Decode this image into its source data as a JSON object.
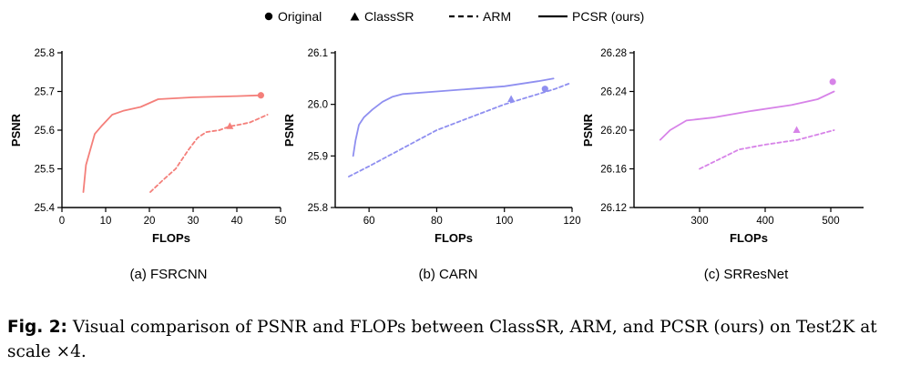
{
  "legend": {
    "original": "Original",
    "classsr": "ClassSR",
    "arm": "ARM",
    "pcsr": "PCSR (ours)"
  },
  "colors": {
    "a": "#f47f7a",
    "b": "#8f8ff0",
    "c": "#d783e8"
  },
  "caption": {
    "label": "Fig. 2:",
    "text": " Visual comparison of PSNR and FLOPs between ClassSR, ARM, and PCSR (ours) on Test2K at scale ×4."
  },
  "chart_data": [
    {
      "type": "line",
      "subtitle": "(a) FSRCNN",
      "xlabel": "FLOPs",
      "ylabel": "PSNR",
      "xlim": [
        0,
        50
      ],
      "ylim": [
        25.4,
        25.8
      ],
      "xticks": [
        0,
        10,
        20,
        30,
        40,
        50
      ],
      "yticks": [
        25.4,
        25.5,
        25.6,
        25.7,
        25.8
      ],
      "ytick_labels": [
        "25.4",
        "25.5",
        "25.6",
        "25.7",
        "25.8"
      ],
      "color": "#f47f7a",
      "series": [
        {
          "name": "PCSR (ours)",
          "style": "solid",
          "x": [
            4.9,
            5.5,
            6.5,
            7.5,
            9,
            11.5,
            14,
            18,
            22,
            30,
            40,
            45.5
          ],
          "y": [
            25.44,
            25.51,
            25.55,
            25.59,
            25.61,
            25.64,
            25.65,
            25.66,
            25.68,
            25.685,
            25.688,
            25.69
          ]
        },
        {
          "name": "ARM",
          "style": "dashed",
          "x": [
            20.2,
            23,
            26,
            29,
            31,
            33,
            36,
            38.4,
            41,
            43,
            45,
            47
          ],
          "y": [
            25.44,
            25.47,
            25.5,
            25.55,
            25.58,
            25.595,
            25.6,
            25.61,
            25.615,
            25.62,
            25.63,
            25.64
          ]
        }
      ],
      "points": [
        {
          "name": "Original",
          "marker": "circle",
          "x": 45.5,
          "y": 25.69
        },
        {
          "name": "ClassSR",
          "marker": "triangle",
          "x": 38.4,
          "y": 25.61
        }
      ]
    },
    {
      "type": "line",
      "subtitle": "(b) CARN",
      "xlabel": "FLOPs",
      "ylabel": "PSNR",
      "xlim": [
        50,
        120
      ],
      "ylim": [
        25.8,
        26.1
      ],
      "xticks": [
        60,
        80,
        100,
        120
      ],
      "yticks": [
        25.8,
        25.9,
        26.0,
        26.1
      ],
      "ytick_labels": [
        "25.8",
        "25.9",
        "26.0",
        "26.1"
      ],
      "color": "#8f8ff0",
      "series": [
        {
          "name": "PCSR (ours)",
          "style": "solid",
          "x": [
            55.3,
            56,
            57,
            58.5,
            61,
            64,
            67,
            70,
            80,
            90,
            100,
            110,
            114.5
          ],
          "y": [
            25.9,
            25.93,
            25.96,
            25.975,
            25.99,
            26.005,
            26.015,
            26.02,
            26.025,
            26.03,
            26.035,
            26.045,
            26.05
          ]
        },
        {
          "name": "ARM",
          "style": "dashed",
          "x": [
            54,
            60,
            70,
            80,
            90,
            100,
            110,
            115,
            119
          ],
          "y": [
            25.86,
            25.88,
            25.915,
            25.95,
            25.975,
            26.0,
            26.02,
            26.03,
            26.04
          ]
        }
      ],
      "points": [
        {
          "name": "Original",
          "marker": "circle",
          "x": 112,
          "y": 26.03
        },
        {
          "name": "ClassSR",
          "marker": "triangle",
          "x": 102,
          "y": 26.01
        }
      ]
    },
    {
      "type": "line",
      "subtitle": "(c) SRResNet",
      "xlabel": "FLOPs",
      "ylabel": "PSNR",
      "xlim": [
        200,
        550
      ],
      "ylim": [
        26.12,
        26.28
      ],
      "xticks": [
        300,
        400,
        500
      ],
      "yticks": [
        26.12,
        26.16,
        26.2,
        26.24,
        26.28
      ],
      "ytick_labels": [
        "26.12",
        "26.16",
        "26.20",
        "26.24",
        "26.28"
      ],
      "color": "#d783e8",
      "series": [
        {
          "name": "PCSR (ours)",
          "style": "solid",
          "x": [
            240,
            255,
            280,
            320,
            380,
            440,
            480,
            505
          ],
          "y": [
            26.19,
            26.2,
            26.21,
            26.213,
            26.22,
            26.226,
            26.232,
            26.24
          ]
        },
        {
          "name": "ARM",
          "style": "dashed",
          "x": [
            300,
            330,
            360,
            400,
            450,
            505
          ],
          "y": [
            26.16,
            26.17,
            26.18,
            26.185,
            26.19,
            26.2
          ]
        }
      ],
      "points": [
        {
          "name": "Original",
          "marker": "circle",
          "x": 503,
          "y": 26.25
        },
        {
          "name": "ClassSR",
          "marker": "triangle",
          "x": 448,
          "y": 26.2
        }
      ]
    }
  ]
}
